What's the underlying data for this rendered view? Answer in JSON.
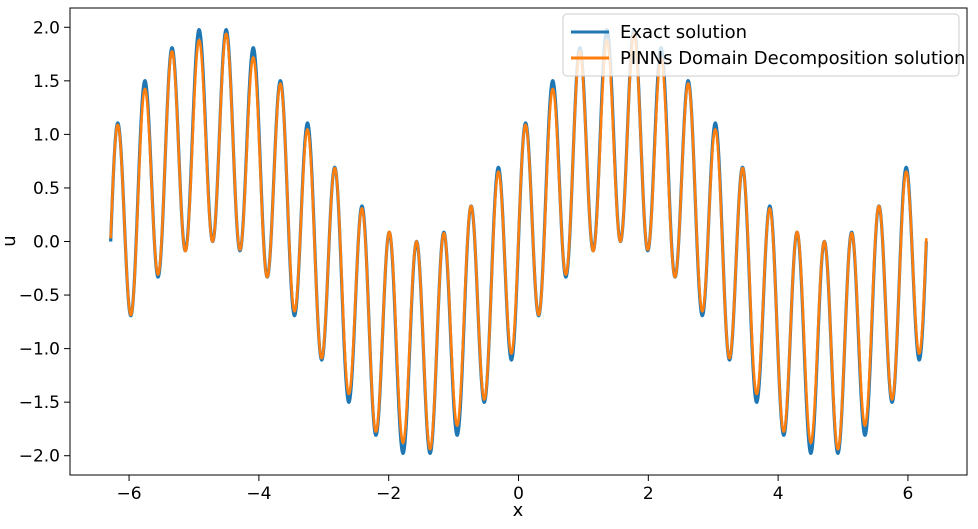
{
  "chart_data": {
    "type": "line",
    "title": "",
    "xlabel": "x",
    "ylabel": "u",
    "xlim": [
      -6.91,
      6.91
    ],
    "ylim": [
      -2.18,
      2.18
    ],
    "xticks": [
      -6,
      -4,
      -2,
      0,
      2,
      4,
      6
    ],
    "xtick_labels": [
      "−6",
      "−4",
      "−2",
      "0",
      "2",
      "4",
      "6"
    ],
    "yticks": [
      -2.0,
      -1.5,
      -1.0,
      -0.5,
      0.0,
      0.5,
      1.0,
      1.5,
      2.0
    ],
    "ytick_labels": [
      "−2.0",
      "−1.5",
      "−1.0",
      "−0.5",
      "0.0",
      "0.5",
      "1.0",
      "1.5",
      "2.0"
    ],
    "grid": false,
    "legend_position": "top-right",
    "x_range": [
      -6.2832,
      6.2832
    ],
    "function": "sin(x) + sin(15x)",
    "series": [
      {
        "name": "Exact solution",
        "color": "#1f77b4",
        "points": [
          [
            -6.2832,
            0.0
          ],
          [
            -6.1785,
            1.0851
          ],
          [
            -6.0737,
            0.0436
          ],
          [
            -5.969,
            -0.6894
          ],
          [
            -5.8643,
            1.5
          ],
          [
            -5.7596,
            0.1976
          ],
          [
            -5.6549,
            1.809
          ],
          [
            -5.5501,
            0.0
          ],
          [
            -5.4454,
            1.9781
          ],
          [
            -5.3407,
            0.0167
          ],
          [
            -5.236,
            1.9781
          ],
          [
            -5.1313,
            -0.05
          ],
          [
            -5.0265,
            1.809
          ],
          [
            -4.9218,
            -0.25
          ],
          [
            -4.8171,
            1.5
          ],
          [
            -4.7124,
            -0.6894
          ],
          [
            -4.6077,
            1.0851
          ],
          [
            -4.5029,
            -0.9781
          ],
          [
            -4.3982,
            0.6
          ],
          [
            -4.2935,
            -1.15
          ],
          [
            -4.1888,
            0.134
          ],
          [
            -4.0841,
            -1.57
          ],
          [
            -3.9794,
            -0.3
          ],
          [
            -3.8746,
            -1.8
          ],
          [
            -3.7699,
            -0.5878
          ],
          [
            -3.6652,
            -1.97
          ],
          [
            -3.5605,
            -0.75
          ],
          [
            -3.4558,
            -1.95
          ],
          [
            -3.351,
            -0.809
          ],
          [
            -3.2463,
            -1.75
          ]
        ],
        "samples": 2400
      },
      {
        "name": "PINNs Domain Decomposition solution",
        "color": "#ff7f0e",
        "samples": 2400
      }
    ],
    "peak_extremes": {
      "max": 2.0,
      "min": -2.0
    }
  }
}
